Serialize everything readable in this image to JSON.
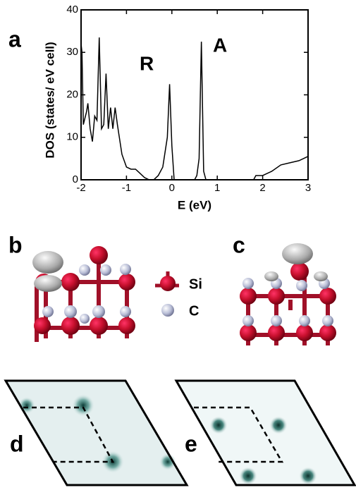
{
  "chart_data": {
    "type": "line",
    "panel_label": "a",
    "x_label": "E (eV)",
    "y_label": "DOS (states/ eV cell)",
    "annotations": [
      "R",
      "A"
    ],
    "color": "#000000",
    "x": [
      -2,
      -1.98,
      -1.95,
      -1.88,
      -1.85,
      -1.8,
      -1.75,
      -1.7,
      -1.65,
      -1.6,
      -1.55,
      -1.5,
      -1.45,
      -1.4,
      -1.35,
      -1.3,
      -1.25,
      -1.2,
      -1.1,
      -1.0,
      -0.9,
      -0.8,
      -0.7,
      -0.6,
      -0.5,
      -0.4,
      -0.3,
      -0.2,
      -0.1,
      -0.05,
      0,
      0.05,
      0.5,
      0.55,
      0.6,
      0.65,
      0.7,
      0.75,
      1.8,
      1.85,
      2,
      2.2,
      2.4,
      2.6,
      2.8,
      3
    ],
    "values": [
      32,
      30,
      13,
      16,
      18,
      12,
      9,
      15,
      14,
      33.5,
      12,
      13,
      25,
      12,
      17,
      12,
      17,
      13,
      6,
      3,
      2.5,
      2.5,
      1.5,
      0.5,
      0,
      0,
      1,
      3,
      10,
      22.5,
      8,
      0,
      0,
      1,
      5,
      32.5,
      2,
      0,
      0,
      1,
      1,
      2,
      3.5,
      4,
      4.5,
      5.5
    ],
    "xlim": [
      -2,
      3
    ],
    "xticks": [
      -2,
      -1,
      0,
      1,
      2,
      3
    ],
    "ylim": [
      0,
      40
    ],
    "yticks": [
      0,
      10,
      20,
      30,
      40
    ]
  },
  "figure": {
    "panel_labels": [
      "b",
      "c",
      "d",
      "e"
    ],
    "legend": [
      "Si",
      "C"
    ]
  }
}
